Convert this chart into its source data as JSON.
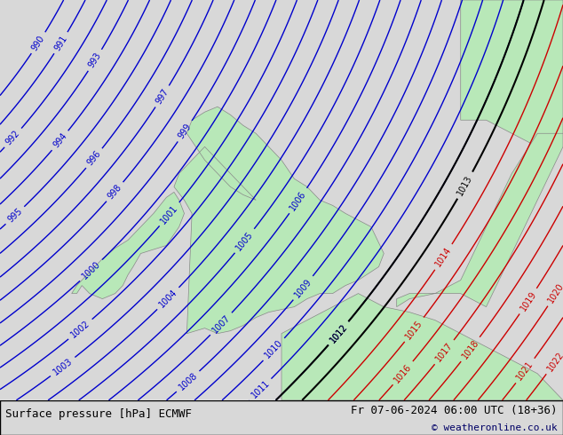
{
  "title_left": "Surface pressure [hPa] ECMWF",
  "title_right": "Fr 07-06-2024 06:00 UTC (18+36)",
  "copyright": "© weatheronline.co.uk",
  "background_color": "#d8d8d8",
  "land_color": "#b8e8b8",
  "sea_color": "#d8d8d8",
  "blue_contour_color": "#0000cc",
  "red_contour_color": "#cc0000",
  "black_contour_color": "#000000",
  "text_color": "#000000",
  "blue_levels": [
    990,
    991,
    992,
    993,
    994,
    995,
    996,
    997,
    998,
    999,
    1000,
    1001,
    1002,
    1003,
    1004,
    1005,
    1006,
    1007,
    1008,
    1009,
    1010,
    1011,
    1012
  ],
  "black_levels": [
    1012,
    1013
  ],
  "red_levels": [
    1014,
    1015,
    1016,
    1017,
    1018,
    1019,
    1020,
    1021,
    1022
  ],
  "figsize": [
    6.34,
    4.9
  ],
  "dpi": 100
}
